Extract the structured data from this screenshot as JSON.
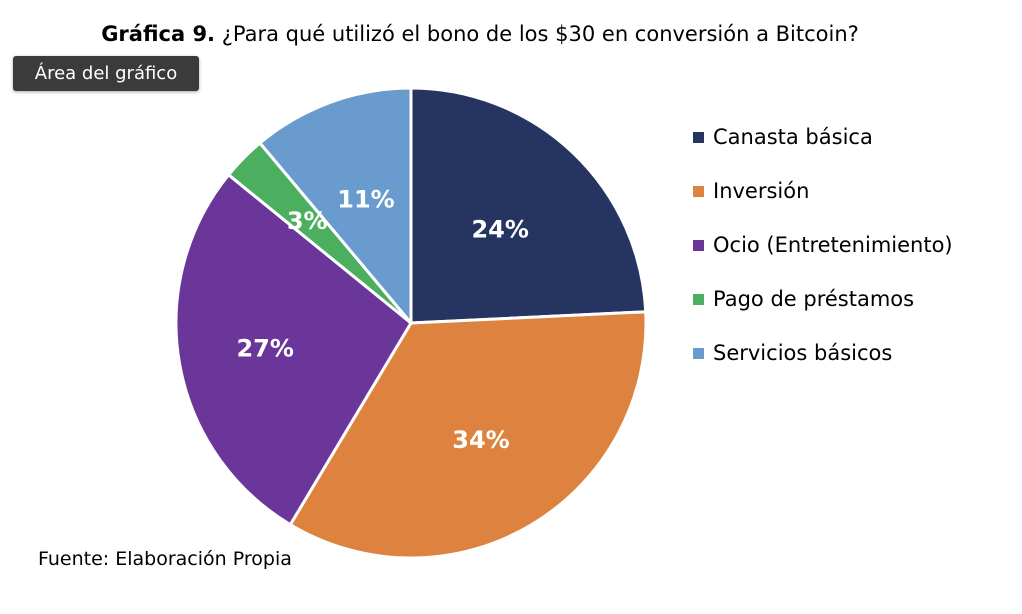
{
  "tooltip": {
    "label": "Área del gráfico"
  },
  "chart_data": {
    "type": "pie",
    "title_lead": "Gráfica 9.",
    "title_rest": "¿Para qué utilizó el bono de los $30 en conversión a Bitcoin?",
    "categories": [
      "Canasta básica",
      "Inversión",
      "Ocio (Entretenimiento)",
      "Pago de préstamos",
      "Servicios básicos"
    ],
    "values": [
      24,
      34,
      27,
      3,
      11
    ],
    "data_labels": [
      "24%",
      "34%",
      "27%",
      "3%",
      "11%"
    ],
    "colors": [
      "#253461",
      "#DE8240",
      "#6A3699",
      "#4BAF5F",
      "#6A9BCF"
    ],
    "legend_position": "right",
    "source": "Fuente: Elaboración Propia"
  }
}
